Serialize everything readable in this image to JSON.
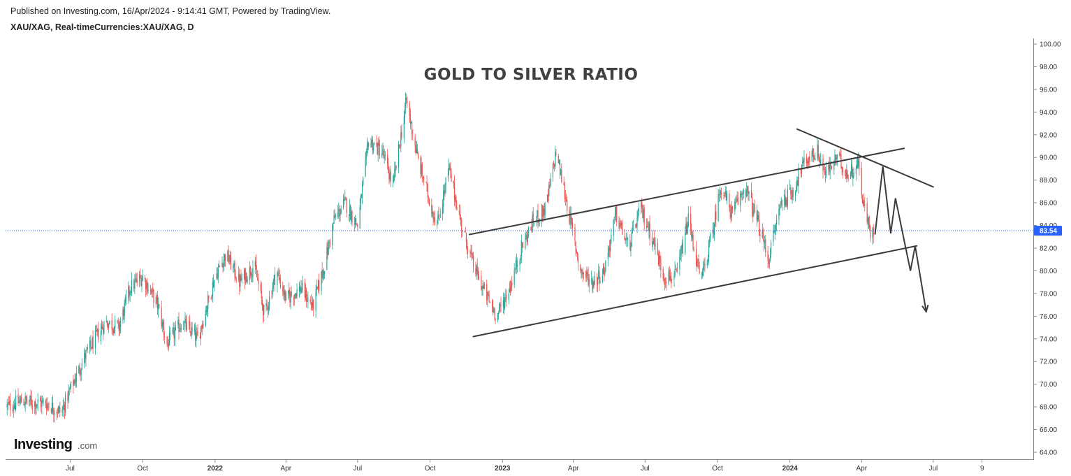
{
  "header": {
    "published": "Published on Investing.com, 16/Apr/2024 - 9:14:41 GMT, Powered by TradingView.",
    "symbol": "XAU/XAG, Real-timeCurrencies:XAU/XAG, D"
  },
  "branding": {
    "logo_main": "Investing",
    "logo_suffix": ".com"
  },
  "colors": {
    "up": "#26a69a",
    "down": "#ef5350",
    "line": "#3b3b3b",
    "price_line": "#2962ff",
    "price_label_bg": "#2962ff"
  },
  "chart_data": {
    "type": "candlestick",
    "title": "GOLD TO SILVER RATIO",
    "xlabel": "",
    "ylabel": "",
    "ylim": [
      64,
      100
    ],
    "y_ticks": [
      "100.00",
      "98.00",
      "96.00",
      "94.00",
      "92.00",
      "90.00",
      "88.00",
      "86.00",
      "84.00",
      "82.00",
      "80.00",
      "78.00",
      "76.00",
      "74.00",
      "72.00",
      "70.00",
      "68.00",
      "66.00",
      "64.00"
    ],
    "x_ticks": [
      {
        "label": "Jul",
        "date": "2021-07-01",
        "bold": false
      },
      {
        "label": "Oct",
        "date": "2021-10-01",
        "bold": false
      },
      {
        "label": "2022",
        "date": "2022-01-01",
        "bold": true
      },
      {
        "label": "Apr",
        "date": "2022-04-01",
        "bold": false
      },
      {
        "label": "Jul",
        "date": "2022-07-01",
        "bold": false
      },
      {
        "label": "Oct",
        "date": "2022-10-01",
        "bold": false
      },
      {
        "label": "2023",
        "date": "2023-01-01",
        "bold": true
      },
      {
        "label": "Apr",
        "date": "2023-04-01",
        "bold": false
      },
      {
        "label": "Jul",
        "date": "2023-07-01",
        "bold": false
      },
      {
        "label": "Oct",
        "date": "2023-10-01",
        "bold": false
      },
      {
        "label": "2024",
        "date": "2024-01-01",
        "bold": true
      },
      {
        "label": "Apr",
        "date": "2024-04-01",
        "bold": false
      },
      {
        "label": "Jul",
        "date": "2024-07-01",
        "bold": false
      },
      {
        "label": "9",
        "date": "2024-09-01",
        "bold": false
      }
    ],
    "x_range": [
      "2021-04-10",
      "2024-11-05"
    ],
    "last_price": "83.54",
    "last_value": 83.54,
    "series_path": [
      [
        "2021-04-10",
        68.0
      ],
      [
        "2021-05-01",
        68.5
      ],
      [
        "2021-06-01",
        68.3
      ],
      [
        "2021-06-20",
        67.5
      ],
      [
        "2021-07-01",
        69.5
      ],
      [
        "2021-07-20",
        72.5
      ],
      [
        "2021-08-15",
        75.5
      ],
      [
        "2021-09-01",
        75.0
      ],
      [
        "2021-09-15",
        78.5
      ],
      [
        "2021-10-01",
        79.5
      ],
      [
        "2021-10-20",
        77.0
      ],
      [
        "2021-11-01",
        73.5
      ],
      [
        "2021-11-20",
        75.5
      ],
      [
        "2021-12-10",
        74.0
      ],
      [
        "2022-01-01",
        79.5
      ],
      [
        "2022-01-15",
        81.5
      ],
      [
        "2022-02-01",
        79.0
      ],
      [
        "2022-02-20",
        80.5
      ],
      [
        "2022-03-05",
        76.0
      ],
      [
        "2022-03-20",
        80.0
      ],
      [
        "2022-04-01",
        77.5
      ],
      [
        "2022-04-20",
        78.5
      ],
      [
        "2022-05-05",
        76.8
      ],
      [
        "2022-05-20",
        80.5
      ],
      [
        "2022-06-01",
        84.5
      ],
      [
        "2022-06-15",
        86.0
      ],
      [
        "2022-07-01",
        84.0
      ],
      [
        "2022-07-15",
        91.5
      ],
      [
        "2022-08-01",
        90.5
      ],
      [
        "2022-08-15",
        87.5
      ],
      [
        "2022-09-01",
        95.0
      ],
      [
        "2022-09-15",
        90.0
      ],
      [
        "2022-10-01",
        86.0
      ],
      [
        "2022-10-10",
        84.0
      ],
      [
        "2022-10-25",
        89.0
      ],
      [
        "2022-11-10",
        84.0
      ],
      [
        "2022-11-25",
        80.5
      ],
      [
        "2022-12-10",
        78.0
      ],
      [
        "2022-12-25",
        76.0
      ],
      [
        "2023-01-10",
        78.5
      ],
      [
        "2023-01-25",
        82.0
      ],
      [
        "2023-02-10",
        84.5
      ],
      [
        "2023-02-25",
        85.5
      ],
      [
        "2023-03-10",
        90.5
      ],
      [
        "2023-03-25",
        85.5
      ],
      [
        "2023-04-10",
        80.0
      ],
      [
        "2023-04-25",
        79.0
      ],
      [
        "2023-05-10",
        80.0
      ],
      [
        "2023-05-25",
        85.0
      ],
      [
        "2023-06-10",
        82.0
      ],
      [
        "2023-06-25",
        85.5
      ],
      [
        "2023-07-10",
        83.0
      ],
      [
        "2023-07-25",
        79.5
      ],
      [
        "2023-08-10",
        79.5
      ],
      [
        "2023-08-25",
        84.5
      ],
      [
        "2023-09-10",
        79.0
      ],
      [
        "2023-09-25",
        83.5
      ],
      [
        "2023-10-05",
        87.5
      ],
      [
        "2023-10-20",
        85.0
      ],
      [
        "2023-11-05",
        87.5
      ],
      [
        "2023-11-20",
        84.5
      ],
      [
        "2023-12-05",
        81.0
      ],
      [
        "2023-12-20",
        86.0
      ],
      [
        "2024-01-05",
        87.0
      ],
      [
        "2024-01-15",
        89.0
      ],
      [
        "2024-01-25",
        90.0
      ],
      [
        "2024-02-05",
        90.5
      ],
      [
        "2024-02-15",
        88.5
      ],
      [
        "2024-03-01",
        90.0
      ],
      [
        "2024-03-15",
        88.5
      ],
      [
        "2024-03-28",
        89.5
      ],
      [
        "2024-04-03",
        86.0
      ],
      [
        "2024-04-10",
        84.0
      ],
      [
        "2024-04-14",
        82.8
      ],
      [
        "2024-04-16",
        83.54
      ]
    ],
    "annotations": {
      "channel_upper": [
        [
          "2022-11-20",
          83.2
        ],
        [
          "2024-05-25",
          90.8
        ]
      ],
      "channel_lower": [
        [
          "2022-11-25",
          74.2
        ],
        [
          "2024-06-10",
          82.2
        ]
      ],
      "triangle_upper": [
        [
          "2024-01-10",
          92.5
        ],
        [
          "2024-07-01",
          87.4
        ]
      ],
      "projection_path": [
        [
          "2024-04-18",
          83.2
        ],
        [
          "2024-04-28",
          89.2
        ],
        [
          "2024-05-08",
          83.3
        ],
        [
          "2024-05-14",
          86.4
        ],
        [
          "2024-06-02",
          80.0
        ],
        [
          "2024-06-08",
          82.2
        ],
        [
          "2024-06-22",
          76.4
        ]
      ]
    }
  }
}
